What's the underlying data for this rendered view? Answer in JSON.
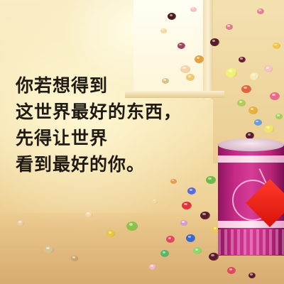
{
  "poem": {
    "lines": [
      "你若想得到",
      "这世界最好的东西，",
      "先得让世界",
      "看到最好的你。"
    ]
  },
  "colors": {
    "text": "#1f1a14",
    "background_warm": "#f5e1ad",
    "tin_magenta": "#c52a86",
    "tag_red": "#e21a10"
  },
  "objects": {
    "candy_tin": "candy-tin",
    "red_tag": "red-gift-tag",
    "candies": "falling-candies"
  }
}
